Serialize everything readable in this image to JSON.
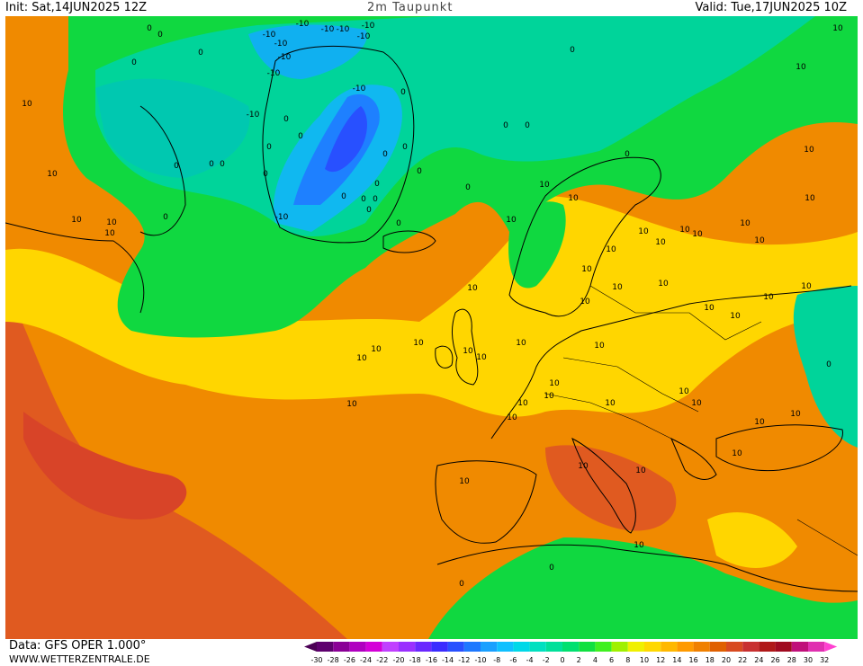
{
  "header": {
    "init": "Init: Sat,14JUN2025 12Z",
    "title": "2m Taupunkt",
    "valid": "Valid: Tue,17JUN2025 10Z"
  },
  "footer": {
    "data_source": "Data: GFS OPER 1.000°",
    "website": "WWW.WETTERZENTRALE.DE"
  },
  "legend": {
    "labels": [
      "-30",
      "-28",
      "-26",
      "-24",
      "-22",
      "-20",
      "-18",
      "-16",
      "-14",
      "-12",
      "-10",
      "-8",
      "-6",
      "-4",
      "-2",
      "0",
      "2",
      "4",
      "6",
      "8",
      "10",
      "12",
      "14",
      "16",
      "18",
      "20",
      "22",
      "24",
      "26",
      "28",
      "30",
      "32"
    ],
    "colors": [
      "#4b0055",
      "#5e006e",
      "#8a0096",
      "#b000c0",
      "#d400d8",
      "#c040ff",
      "#9a30ff",
      "#6a28ff",
      "#3a2cff",
      "#2850ff",
      "#1e78ff",
      "#1aa0ff",
      "#10c0ff",
      "#00d8e8",
      "#00e0c0",
      "#00e09a",
      "#00e070",
      "#10e040",
      "#40f020",
      "#a0f000",
      "#f0f000",
      "#ffd800",
      "#ffb800",
      "#ff9a00",
      "#f08000",
      "#e06000",
      "#d84a20",
      "#c83030",
      "#b01818",
      "#a00a20",
      "#c0107a",
      "#e030b0",
      "#ff40d0"
    ]
  },
  "contour_labels": {
    "minus10": [
      "-10",
      "-10",
      "-10",
      "-10",
      "-10",
      "-10",
      "-10",
      "-10",
      "-10",
      "-10",
      "-10",
      "-10"
    ],
    "zero": [
      "0",
      "0",
      "0",
      "0",
      "0",
      "0",
      "0",
      "0",
      "0",
      "0",
      "0",
      "0",
      "0",
      "0",
      "0",
      "0",
      "0",
      "0",
      "0",
      "0",
      "0",
      "0",
      "0",
      "0",
      "0",
      "0",
      "0",
      "0",
      "0",
      "0"
    ],
    "ten": [
      "10",
      "10",
      "10",
      "10",
      "10",
      "10",
      "10",
      "10",
      "10",
      "10",
      "10",
      "10",
      "10",
      "10",
      "10",
      "10",
      "10",
      "10",
      "10",
      "10",
      "10",
      "10",
      "10",
      "10",
      "10",
      "10",
      "10",
      "10",
      "10",
      "10",
      "10",
      "10",
      "10",
      "10",
      "10",
      "10",
      "10",
      "10",
      "10",
      "10",
      "10",
      "10",
      "10",
      "10",
      "10",
      "10",
      "10",
      "10",
      "10",
      "10"
    ]
  }
}
